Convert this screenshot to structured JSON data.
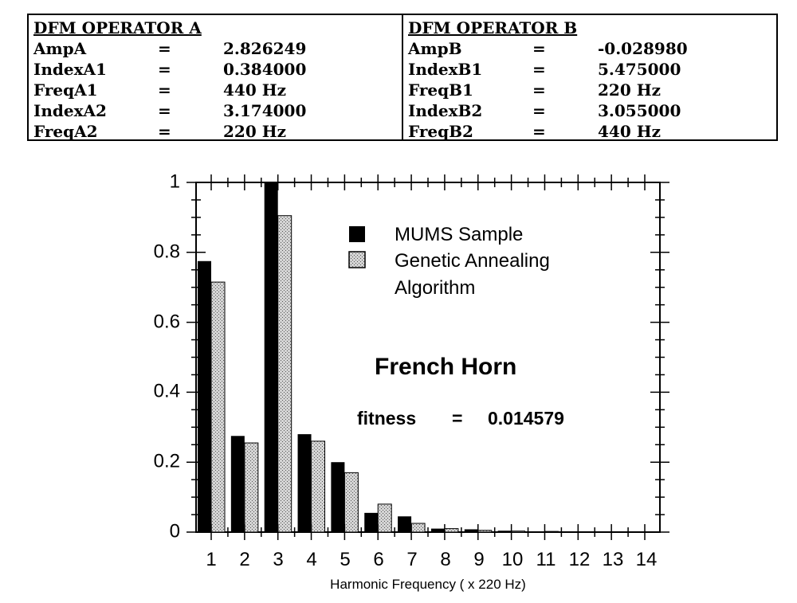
{
  "operator_a": {
    "title": "DFM OPERATOR A",
    "rows": [
      {
        "label": "AmpA",
        "eq": "=",
        "value": "2.826249"
      },
      {
        "label": "IndexA1",
        "eq": "=",
        "value": "0.384000"
      },
      {
        "label": "FreqA1",
        "eq": "=",
        "value": "440 Hz"
      },
      {
        "label": "IndexA2",
        "eq": "=",
        "value": "3.174000"
      },
      {
        "label": "FreqA2",
        "eq": "=",
        "value": "220 Hz"
      }
    ]
  },
  "operator_b": {
    "title": "DFM OPERATOR B",
    "rows": [
      {
        "label": "AmpB",
        "eq": "=",
        "value": "-0.028980"
      },
      {
        "label": "IndexB1",
        "eq": "=",
        "value": "5.475000"
      },
      {
        "label": "FreqB1",
        "eq": "=",
        "value": "220 Hz"
      },
      {
        "label": "IndexB2",
        "eq": "=",
        "value": "3.055000"
      },
      {
        "label": "FreqB2",
        "eq": "=",
        "value": "440 Hz"
      }
    ]
  },
  "chart_data": {
    "type": "bar",
    "categories": [
      "1",
      "2",
      "3",
      "4",
      "5",
      "6",
      "7",
      "8",
      "9",
      "10",
      "11",
      "12",
      "13",
      "14"
    ],
    "series": [
      {
        "name": "MUMS Sample",
        "values": [
          0.775,
          0.275,
          1.0,
          0.28,
          0.2,
          0.055,
          0.045,
          0.01,
          0.008,
          0.004,
          0.002,
          0.002,
          0.001,
          0.001
        ],
        "color": "#000000"
      },
      {
        "name": "Genetic Annealing Algorithm",
        "values": [
          0.715,
          0.255,
          0.905,
          0.26,
          0.17,
          0.08,
          0.025,
          0.01,
          0.005,
          0.003,
          0.002,
          0.001,
          0.001,
          0.0
        ],
        "color": "#bdbdbd"
      }
    ],
    "legend": {
      "entries": [
        {
          "text": "MUMS Sample"
        },
        {
          "text": "Genetic Annealing"
        },
        {
          "text": "Algorithm"
        }
      ],
      "position": "top-right"
    },
    "annotation_title": "French  Horn",
    "annotation_fitness": {
      "label": "fitness",
      "eq": "=",
      "value": "0.014579"
    },
    "xlabel": "Harmonic Frequency ( x 220 Hz)",
    "yticks": [
      "0",
      "0.2",
      "0.4",
      "0.6",
      "0.8",
      "1"
    ],
    "ylim": [
      0,
      1
    ],
    "grid": false
  }
}
